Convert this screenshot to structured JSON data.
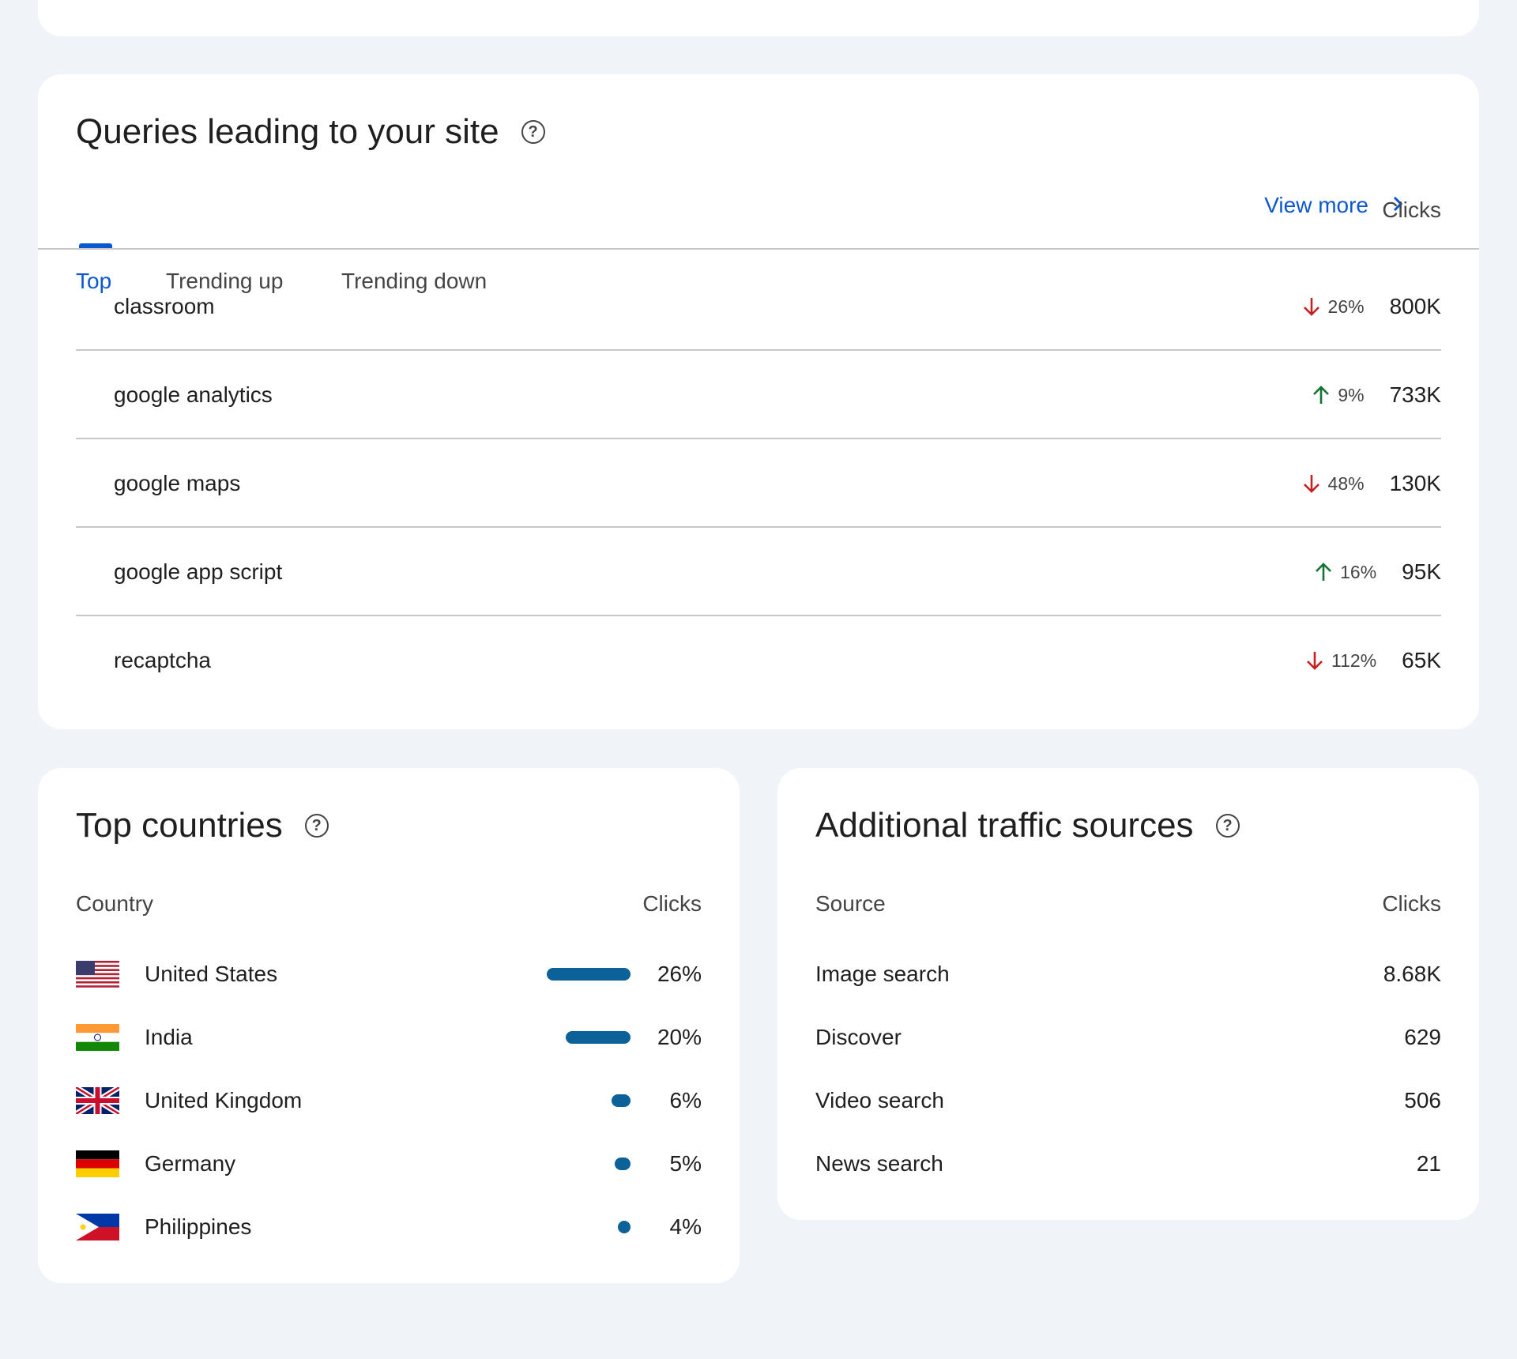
{
  "queries": {
    "title": "Queries leading to your site",
    "view_more": "View more",
    "tabs": [
      "Top",
      "Trending up",
      "Trending down"
    ],
    "active_tab": "Top",
    "column_header": "Clicks",
    "rows": [
      {
        "query": "classroom",
        "direction": "down",
        "change": "26%",
        "clicks": "800K"
      },
      {
        "query": "google analytics",
        "direction": "up",
        "change": "9%",
        "clicks": "733K"
      },
      {
        "query": "google maps",
        "direction": "down",
        "change": "48%",
        "clicks": "130K"
      },
      {
        "query": "google app script",
        "direction": "up",
        "change": "16%",
        "clicks": "95K"
      },
      {
        "query": "recaptcha",
        "direction": "down",
        "change": "112%",
        "clicks": "65K"
      }
    ]
  },
  "countries": {
    "title": "Top countries",
    "col_country": "Country",
    "col_clicks": "Clicks",
    "rows": [
      {
        "name": "United States",
        "flag": "us-flag-icon",
        "pct": "26%",
        "share": 26
      },
      {
        "name": "India",
        "flag": "india-flag-icon",
        "pct": "20%",
        "share": 20
      },
      {
        "name": "United Kingdom",
        "flag": "uk-flag-icon",
        "pct": "6%",
        "share": 6
      },
      {
        "name": "Germany",
        "flag": "germany-flag-icon",
        "pct": "5%",
        "share": 5
      },
      {
        "name": "Philippines",
        "flag": "philippines-flag-icon",
        "pct": "4%",
        "share": 4
      }
    ]
  },
  "traffic": {
    "title": "Additional traffic sources",
    "col_source": "Source",
    "col_clicks": "Clicks",
    "rows": [
      {
        "source": "Image search",
        "clicks": "8.68K"
      },
      {
        "source": "Discover",
        "clicks": "629"
      },
      {
        "source": "Video search",
        "clicks": "506"
      },
      {
        "source": "News search",
        "clicks": "21"
      }
    ]
  },
  "colors": {
    "accent": "#0b57d0",
    "down": "#c5221f",
    "up": "#137333",
    "bar": "#0b6198",
    "background": "#f0f4f9"
  }
}
